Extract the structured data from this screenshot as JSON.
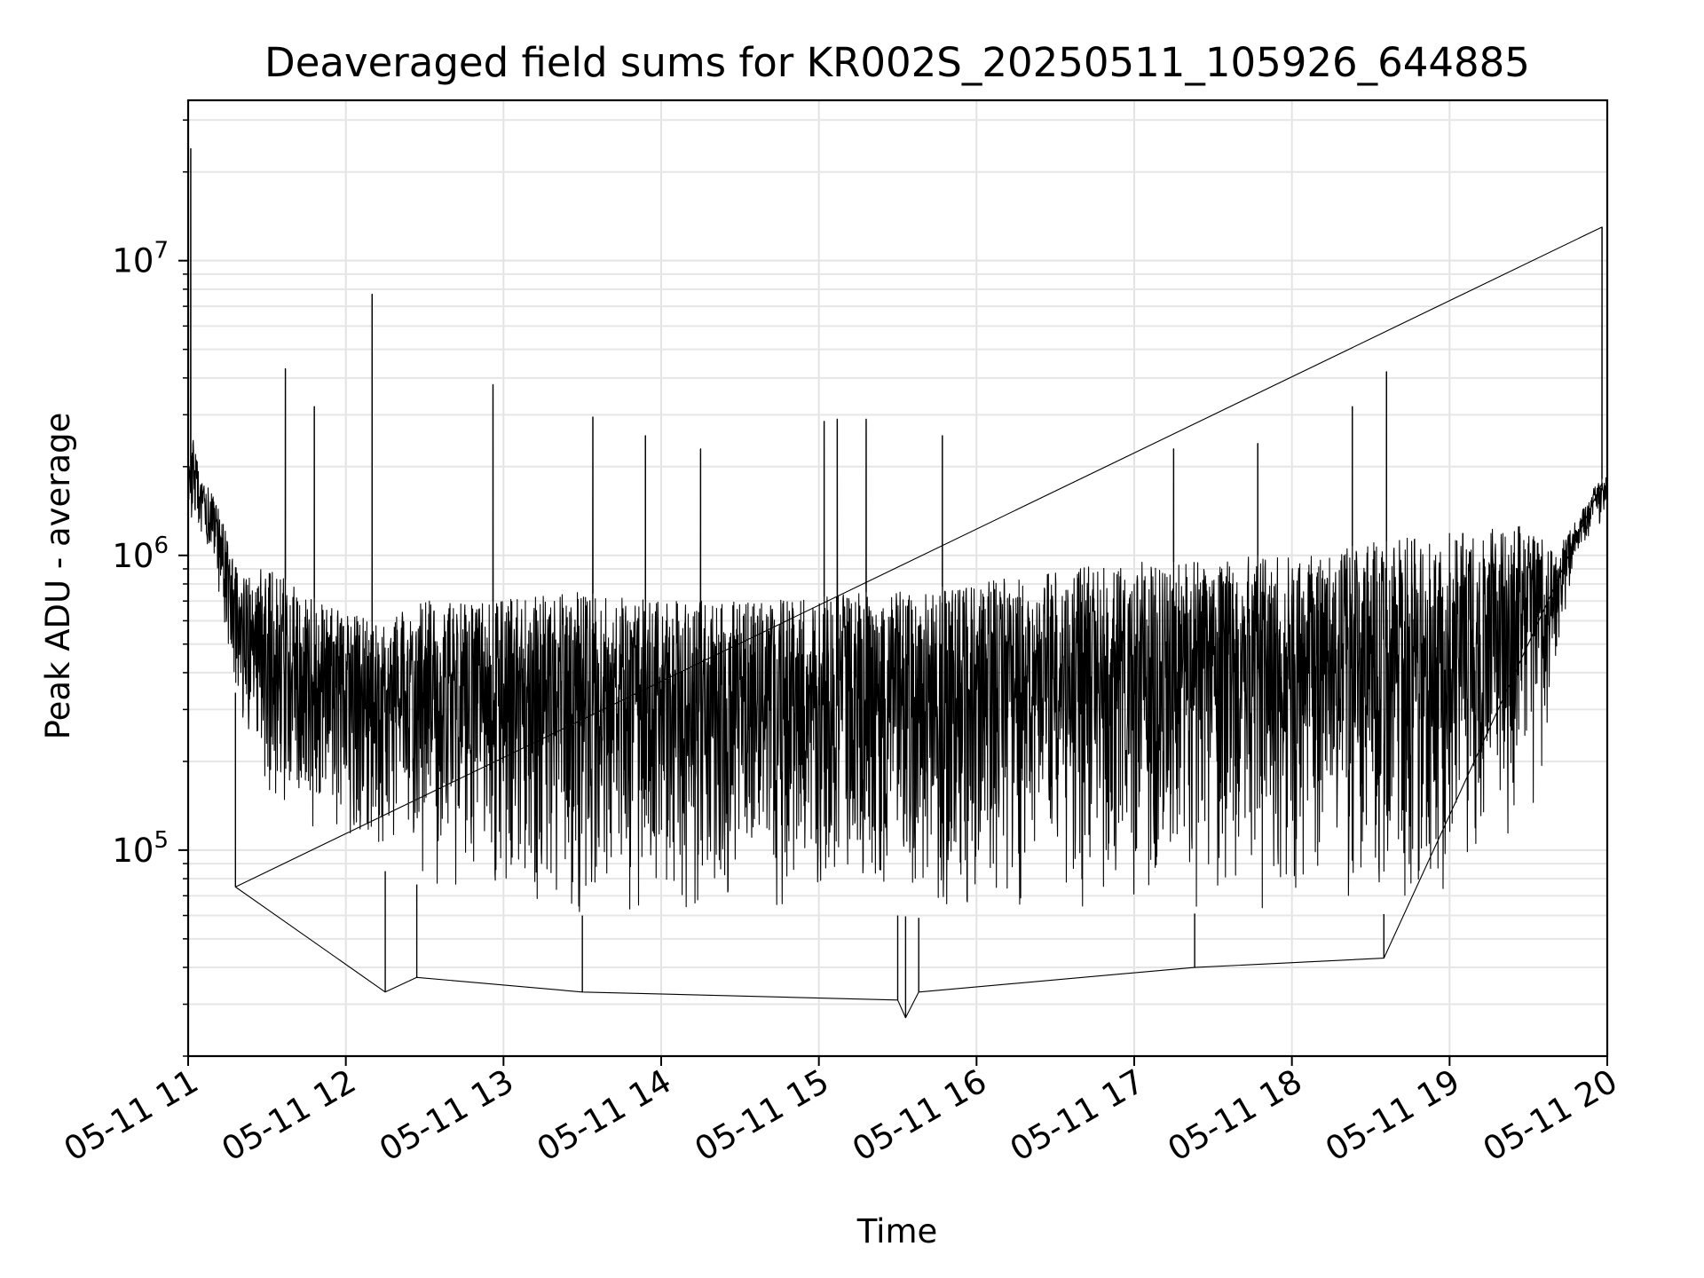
{
  "chart_data": {
    "type": "line",
    "title": "Deaveraged field sums for KR002S_20250511_105926_644885",
    "xlabel": "Time",
    "ylabel": "Peak ADU - average",
    "x_axis": {
      "kind": "time",
      "range": [
        "2025-05-11 11:00",
        "2025-05-11 20:00"
      ],
      "tick_labels": [
        "05-11 11",
        "05-11 12",
        "05-11 13",
        "05-11 14",
        "05-11 15",
        "05-11 16",
        "05-11 17",
        "05-11 18",
        "05-11 19",
        "05-11 20"
      ]
    },
    "y_axis": {
      "scale": "log",
      "ylim": [
        20000,
        35000000
      ],
      "ticks": [
        {
          "value": 100000,
          "base": "10",
          "exp": "5"
        },
        {
          "value": 1000000,
          "base": "10",
          "exp": "6"
        },
        {
          "value": 10000000,
          "base": "10",
          "exp": "7"
        }
      ]
    },
    "grid": true,
    "series": [
      {
        "color": "#000000",
        "x": [
          "2025-05-11 11:00",
          "2025-05-11 11:02",
          "2025-05-11 11:05",
          "2025-05-11 11:10",
          "2025-05-11 11:17",
          "2025-05-11 11:20",
          "2025-05-11 11:25",
          "2025-05-11 11:30",
          "2025-05-11 11:40",
          "2025-05-11 11:50",
          "2025-05-11 12:00",
          "2025-05-11 12:10",
          "2025-05-11 12:20",
          "2025-05-11 12:30",
          "2025-05-11 12:45",
          "2025-05-11 13:00",
          "2025-05-11 13:15",
          "2025-05-11 13:30",
          "2025-05-11 13:45",
          "2025-05-11 14:00",
          "2025-05-11 14:15",
          "2025-05-11 14:30",
          "2025-05-11 14:45",
          "2025-05-11 15:00",
          "2025-05-11 15:15",
          "2025-05-11 15:30",
          "2025-05-11 15:45",
          "2025-05-11 16:00",
          "2025-05-11 16:15",
          "2025-05-11 16:30",
          "2025-05-11 16:45",
          "2025-05-11 17:00",
          "2025-05-11 17:15",
          "2025-05-11 17:30",
          "2025-05-11 17:45",
          "2025-05-11 18:00",
          "2025-05-11 18:15",
          "2025-05-11 18:30",
          "2025-05-11 18:45",
          "2025-05-11 19:00",
          "2025-05-11 19:15",
          "2025-05-11 19:30",
          "2025-05-11 19:40",
          "2025-05-11 19:45",
          "2025-05-11 19:50",
          "2025-05-11 19:55",
          "2025-05-11 20:00"
        ],
        "upper": [
          1900000,
          2500000,
          1800000,
          1600000,
          1000000,
          850000,
          900000,
          900000,
          800000,
          700000,
          650000,
          600000,
          650000,
          700000,
          700000,
          700000,
          750000,
          750000,
          720000,
          700000,
          700000,
          700000,
          720000,
          720000,
          750000,
          750000,
          780000,
          800000,
          850000,
          900000,
          920000,
          950000,
          950000,
          950000,
          1000000,
          1000000,
          1050000,
          1100000,
          1150000,
          1200000,
          1250000,
          1300000,
          1000000,
          1200000,
          1400000,
          1700000,
          1900000
        ],
        "lower": [
          1300000,
          1200000,
          1100000,
          900000,
          400000,
          250000,
          200000,
          150000,
          120000,
          110000,
          100000,
          90000,
          80000,
          75000,
          70000,
          65000,
          62000,
          60000,
          57000,
          55000,
          55000,
          58000,
          60000,
          62000,
          60000,
          60000,
          58000,
          58000,
          60000,
          62000,
          62000,
          62000,
          62000,
          60000,
          60000,
          60000,
          60000,
          60000,
          62000,
          65000,
          80000,
          110000,
          300000,
          700000,
          1000000,
          1200000,
          1300000
        ],
        "spikes": [
          {
            "x": "2025-05-11 11:01",
            "y": 24000000
          },
          {
            "x": "2025-05-11 11:37",
            "y": 4300000
          },
          {
            "x": "2025-05-11 11:48",
            "y": 3200000
          },
          {
            "x": "2025-05-11 12:10",
            "y": 7700000
          },
          {
            "x": "2025-05-11 12:56",
            "y": 3800000
          },
          {
            "x": "2025-05-11 13:34",
            "y": 2950000
          },
          {
            "x": "2025-05-11 13:54",
            "y": 2550000
          },
          {
            "x": "2025-05-11 14:15",
            "y": 2300000
          },
          {
            "x": "2025-05-11 15:02",
            "y": 2850000
          },
          {
            "x": "2025-05-11 15:07",
            "y": 2900000
          },
          {
            "x": "2025-05-11 15:18",
            "y": 2900000
          },
          {
            "x": "2025-05-11 15:47",
            "y": 2550000
          },
          {
            "x": "2025-05-11 17:15",
            "y": 2300000
          },
          {
            "x": "2025-05-11 17:47",
            "y": 2400000
          },
          {
            "x": "2025-05-11 18:23",
            "y": 3200000
          },
          {
            "x": "2025-05-11 18:36",
            "y": 4200000
          },
          {
            "x": "2025-05-11 19:58",
            "y": 13000000
          },
          {
            "x": "2025-05-11 11:18",
            "y": 75000
          },
          {
            "x": "2025-05-11 12:15",
            "y": 33000
          },
          {
            "x": "2025-05-11 12:27",
            "y": 37000
          },
          {
            "x": "2025-05-11 13:30",
            "y": 33000
          },
          {
            "x": "2025-05-11 15:30",
            "y": 31000
          },
          {
            "x": "2025-05-11 15:33",
            "y": 27000
          },
          {
            "x": "2025-05-11 15:38",
            "y": 33000
          },
          {
            "x": "2025-05-11 17:23",
            "y": 40000
          },
          {
            "x": "2025-05-11 18:35",
            "y": 43000
          }
        ]
      }
    ]
  }
}
